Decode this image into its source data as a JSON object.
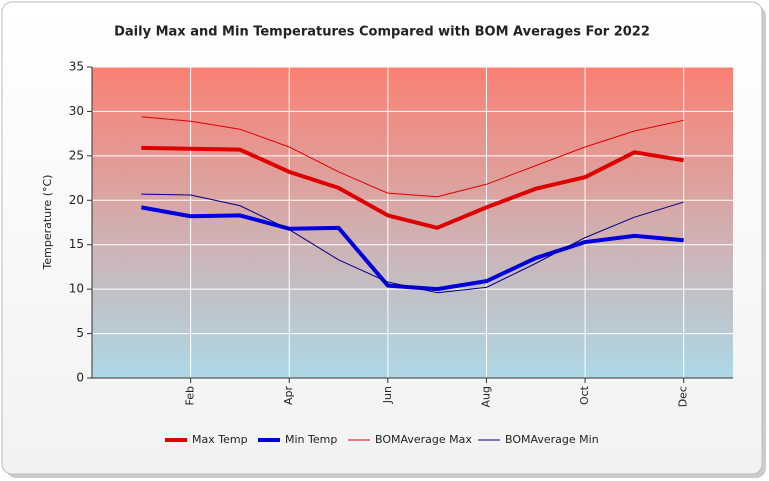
{
  "chart_data": {
    "type": "line",
    "title": "Daily Max and Min Temperatures Compared with BOM Averages For 2022",
    "y_label": "Temperature (°C)",
    "categories": [
      null,
      "Feb",
      null,
      "Apr",
      null,
      "Jun",
      null,
      "Aug",
      null,
      "Oct",
      null,
      "Dec"
    ],
    "series": [
      {
        "name": "Max Temp",
        "color": "#dd0000",
        "width": 4,
        "values": [
          25.9,
          25.8,
          25.7,
          23.2,
          21.4,
          18.3,
          16.9,
          19.2,
          21.3,
          22.6,
          25.4,
          24.5
        ]
      },
      {
        "name": "Min Temp",
        "color": "#0000dd",
        "width": 4,
        "values": [
          19.2,
          18.2,
          18.3,
          16.8,
          16.9,
          10.4,
          10.0,
          10.9,
          13.5,
          15.3,
          16.0,
          15.5
        ]
      },
      {
        "name": "BOMAverage Max",
        "color": "#dd0000",
        "width": 1,
        "values": [
          29.4,
          28.9,
          28.0,
          26.0,
          23.2,
          20.8,
          20.4,
          21.8,
          23.9,
          26.0,
          27.8,
          29.0
        ]
      },
      {
        "name": "BOMAverage Min",
        "color": "#000080",
        "width": 1,
        "values": [
          20.7,
          20.6,
          19.4,
          16.7,
          13.3,
          10.8,
          9.6,
          10.2,
          12.9,
          15.8,
          18.1,
          19.8
        ]
      }
    ],
    "ylim": [
      0,
      35
    ],
    "yticks": [
      0,
      5,
      10,
      15,
      20,
      25,
      30,
      35
    ],
    "grid": true
  }
}
